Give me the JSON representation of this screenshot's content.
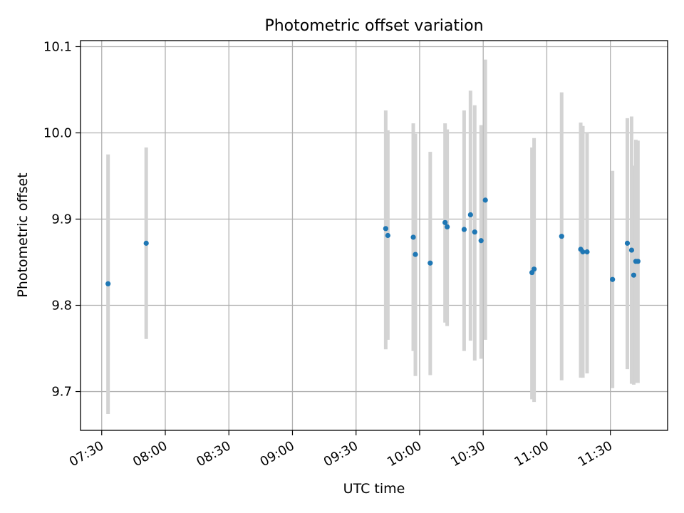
{
  "chart_data": {
    "type": "scatter",
    "title": "Photometric offset variation",
    "xlabel": "UTC time",
    "ylabel": "Photometric offset",
    "x_tick_labels": [
      "07:30",
      "08:00",
      "08:30",
      "09:00",
      "09:30",
      "10:00",
      "10:30",
      "11:00",
      "11:30"
    ],
    "x_ticks_minutes": [
      450,
      480,
      510,
      540,
      570,
      600,
      630,
      660,
      690
    ],
    "y_ticks": [
      9.7,
      9.8,
      9.9,
      10.0,
      10.1
    ],
    "y_tick_labels": [
      "9.7",
      "9.8",
      "9.9",
      "10.0",
      "10.1"
    ],
    "xlim": [
      "07:20",
      "11:57"
    ],
    "ylim": [
      9.655,
      10.107
    ],
    "grid": true,
    "colors": {
      "points": "#1f77b4",
      "errorbars": "#d3d3d3",
      "grid": "#b0b0b0",
      "axes": "#000000"
    },
    "series": [
      {
        "points": [
          {
            "x": "07:33",
            "y": 9.825,
            "lo": 9.674,
            "hi": 9.975
          },
          {
            "x": "07:51",
            "y": 9.872,
            "lo": 9.761,
            "hi": 9.983
          },
          {
            "x": "09:44",
            "y": 9.889,
            "lo": 9.749,
            "hi": 10.026
          },
          {
            "x": "09:45",
            "y": 9.881,
            "lo": 9.76,
            "hi": 10.003
          },
          {
            "x": "09:57",
            "y": 9.879,
            "lo": 9.747,
            "hi": 10.011
          },
          {
            "x": "09:58",
            "y": 9.859,
            "lo": 9.718,
            "hi": 9.999
          },
          {
            "x": "10:05",
            "y": 9.849,
            "lo": 9.719,
            "hi": 9.978
          },
          {
            "x": "10:12",
            "y": 9.896,
            "lo": 9.78,
            "hi": 10.011
          },
          {
            "x": "10:13",
            "y": 9.891,
            "lo": 9.776,
            "hi": 10.004
          },
          {
            "x": "10:21",
            "y": 9.888,
            "lo": 9.747,
            "hi": 10.026
          },
          {
            "x": "10:24",
            "y": 9.905,
            "lo": 9.759,
            "hi": 10.049
          },
          {
            "x": "10:26",
            "y": 9.885,
            "lo": 9.736,
            "hi": 10.032
          },
          {
            "x": "10:29",
            "y": 9.875,
            "lo": 9.738,
            "hi": 10.009
          },
          {
            "x": "10:31",
            "y": 9.922,
            "lo": 9.76,
            "hi": 10.085
          },
          {
            "x": "10:53",
            "y": 9.838,
            "lo": 9.691,
            "hi": 9.983
          },
          {
            "x": "10:54",
            "y": 9.842,
            "lo": 9.688,
            "hi": 9.994
          },
          {
            "x": "11:07",
            "y": 9.88,
            "lo": 9.713,
            "hi": 10.047
          },
          {
            "x": "11:16",
            "y": 9.865,
            "lo": 9.716,
            "hi": 10.012
          },
          {
            "x": "11:17",
            "y": 9.862,
            "lo": 9.716,
            "hi": 10.008
          },
          {
            "x": "11:19",
            "y": 9.862,
            "lo": 9.721,
            "hi": 10.001
          },
          {
            "x": "11:31",
            "y": 9.83,
            "lo": 9.704,
            "hi": 9.956
          },
          {
            "x": "11:38",
            "y": 9.872,
            "lo": 9.726,
            "hi": 10.017
          },
          {
            "x": "11:40",
            "y": 9.864,
            "lo": 9.709,
            "hi": 10.019
          },
          {
            "x": "11:41",
            "y": 9.835,
            "lo": 9.708,
            "hi": 9.962
          },
          {
            "x": "11:42",
            "y": 9.851,
            "lo": 9.71,
            "hi": 9.992
          },
          {
            "x": "11:43",
            "y": 9.851,
            "lo": 9.71,
            "hi": 9.991
          }
        ]
      }
    ]
  }
}
